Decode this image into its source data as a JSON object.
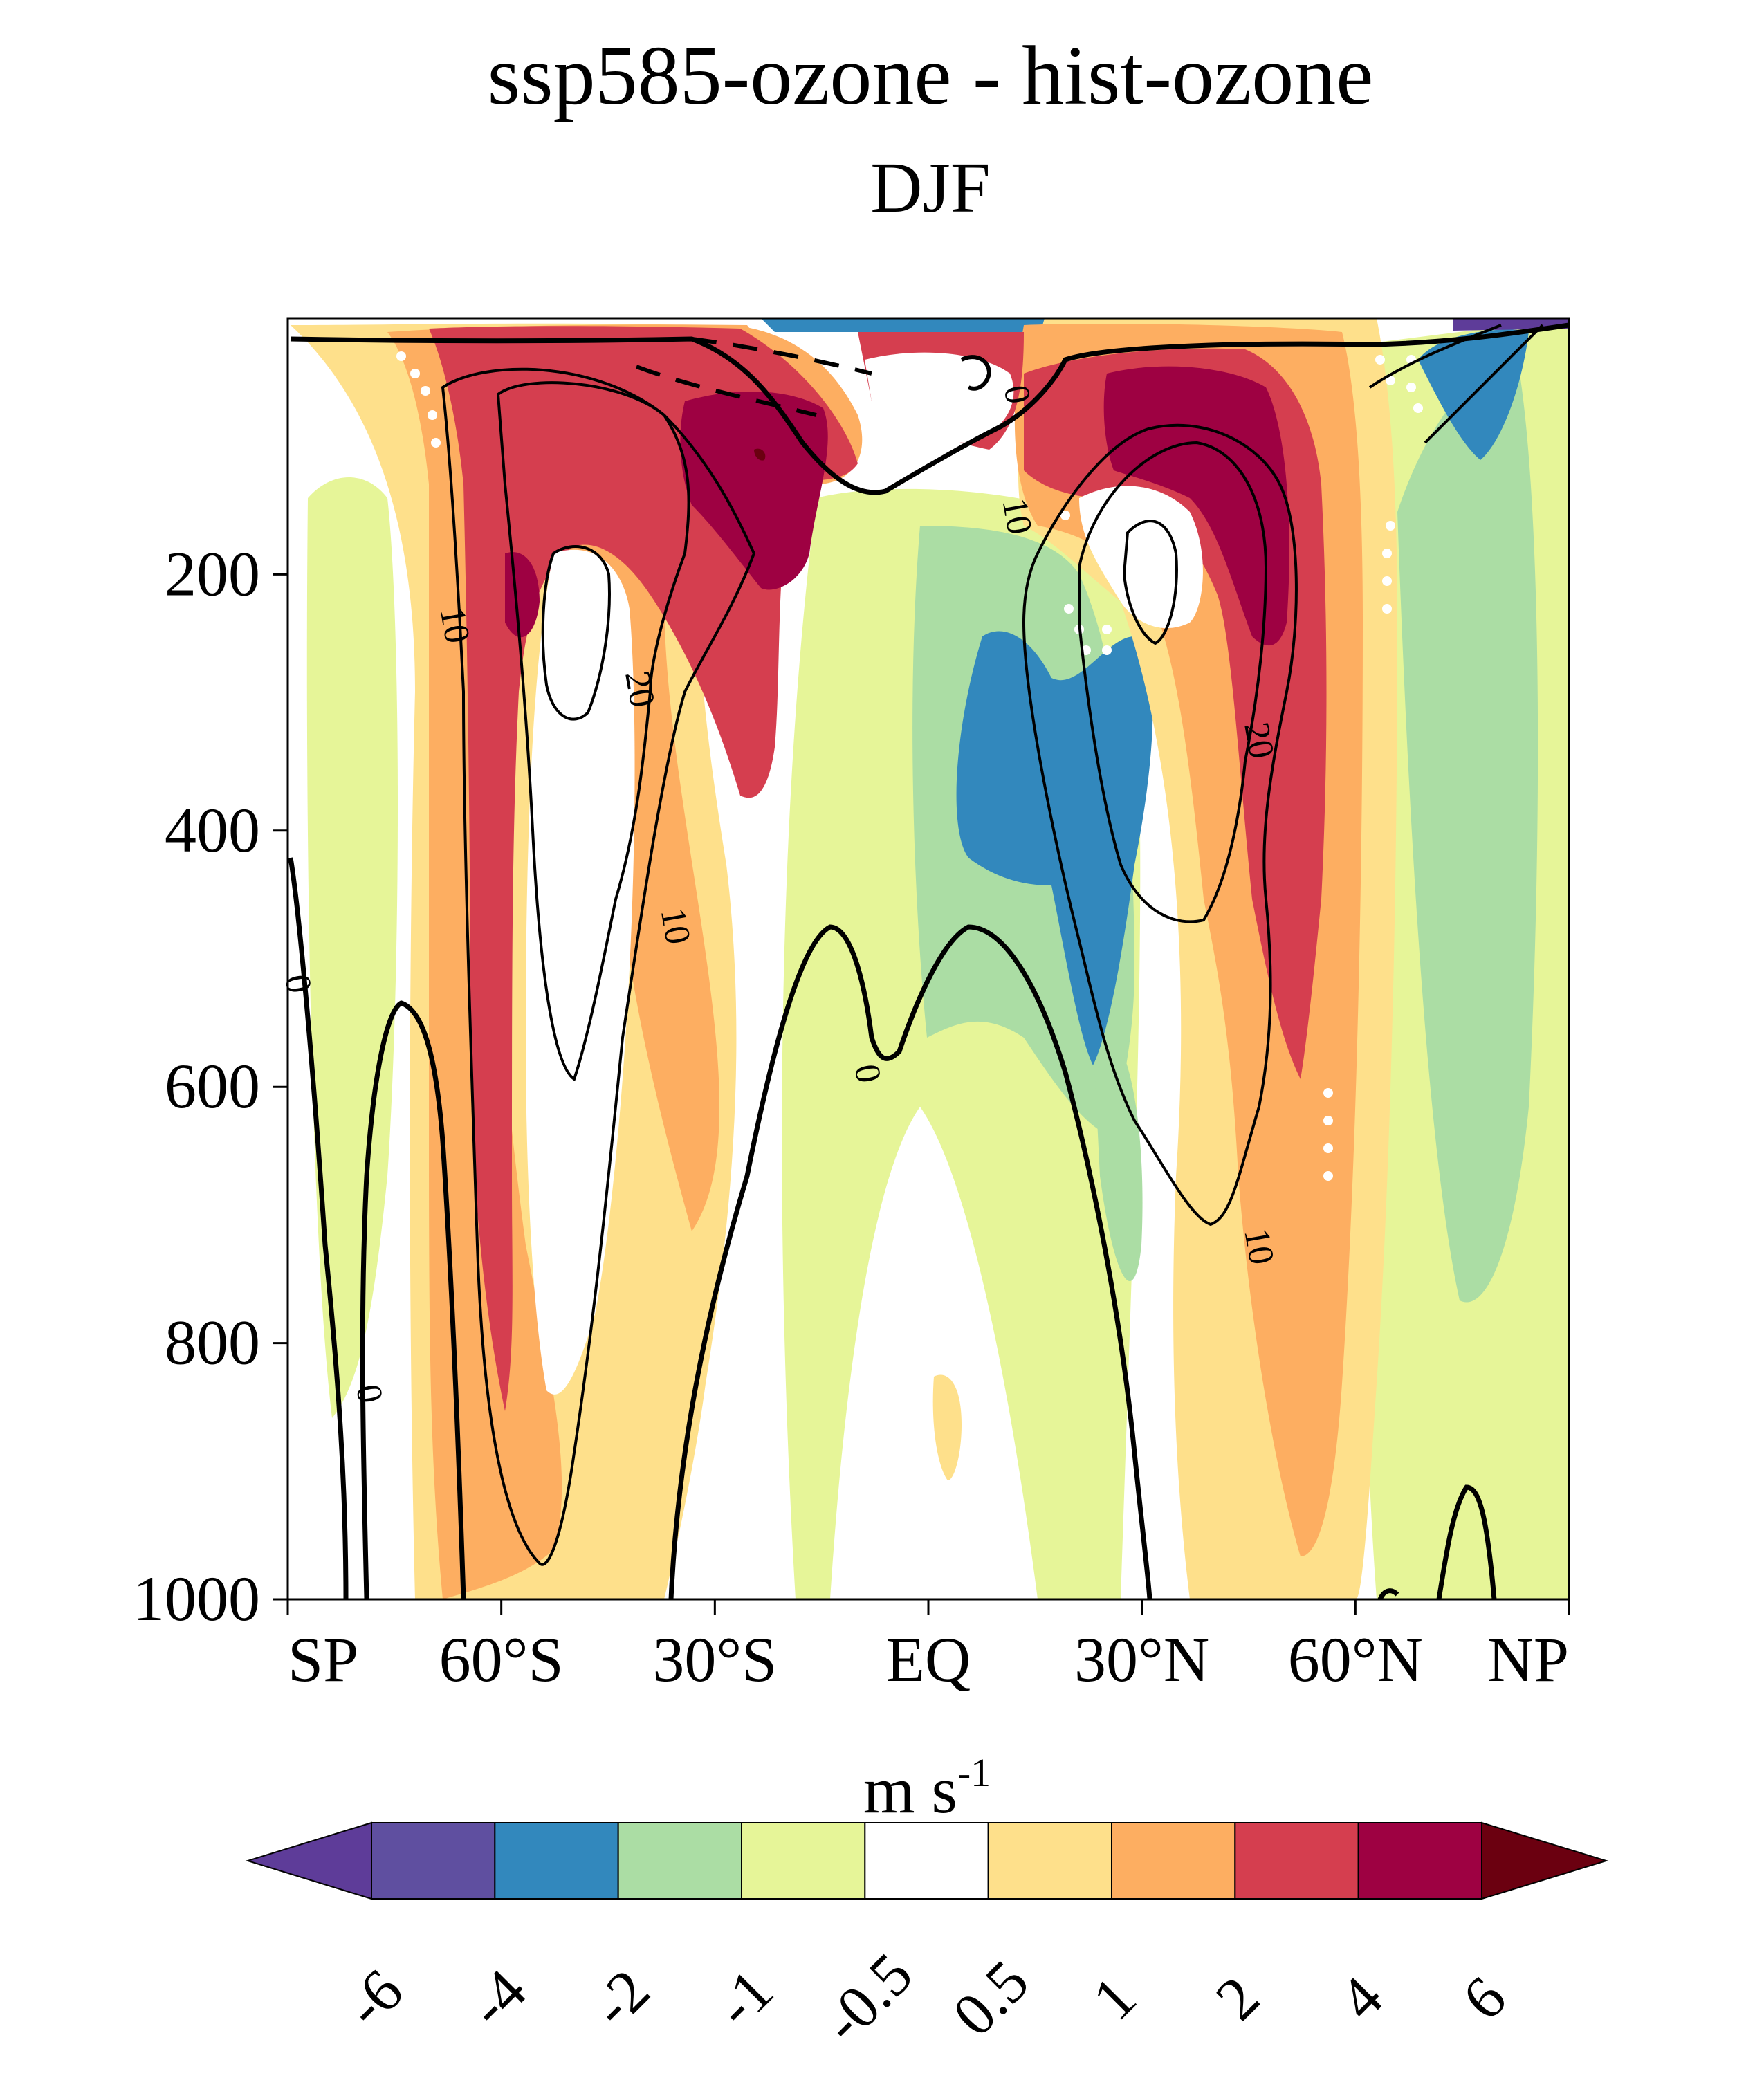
{
  "chart_data": {
    "type": "contour",
    "title": "ssp585-ozone - hist-ozone",
    "subtitle": "DJF",
    "xlabel": "",
    "ylabel": "",
    "x_ticks": [
      "SP",
      "60°S",
      "30°S",
      "EQ",
      "30°N",
      "60°N",
      "NP"
    ],
    "x_tick_values": [
      -90,
      -60,
      -30,
      0,
      30,
      60,
      90
    ],
    "y_ticks": [
      "200",
      "400",
      "600",
      "800",
      "1000"
    ],
    "y_tick_values": [
      200,
      400,
      600,
      800,
      1000
    ],
    "xlim": [
      -90,
      90
    ],
    "ylim": [
      1000,
      0
    ],
    "colorbar": {
      "label": "m s",
      "label_superscript": "-1",
      "levels": [
        "-6",
        "-4",
        "-2",
        "-1",
        "-0.5",
        "0.5",
        "1",
        "2",
        "4",
        "6"
      ],
      "colors": [
        "#5e3c99",
        "#5f4fa0",
        "#3288bd",
        "#abdda4",
        "#e6f598",
        "#ffffff",
        "#fee08b",
        "#fdae61",
        "#d53e4f",
        "#9e0142",
        "#6b0010"
      ],
      "extend": "both"
    },
    "contour_labels": [
      {
        "text": "0",
        "lat": 12,
        "p": 60
      },
      {
        "text": "10",
        "lat": 12,
        "p": 155
      },
      {
        "text": "10",
        "lat": -67,
        "p": 240
      },
      {
        "text": "20",
        "lat": -41,
        "p": 290
      },
      {
        "text": "20",
        "lat": 46,
        "p": 330
      },
      {
        "text": "10",
        "lat": -36,
        "p": 475
      },
      {
        "text": "0",
        "lat": -9,
        "p": 590
      },
      {
        "text": "10",
        "lat": 46,
        "p": 725
      },
      {
        "text": "0",
        "lat": -79,
        "p": 840
      },
      {
        "text": "0",
        "lat": -89,
        "p": 520
      }
    ]
  }
}
